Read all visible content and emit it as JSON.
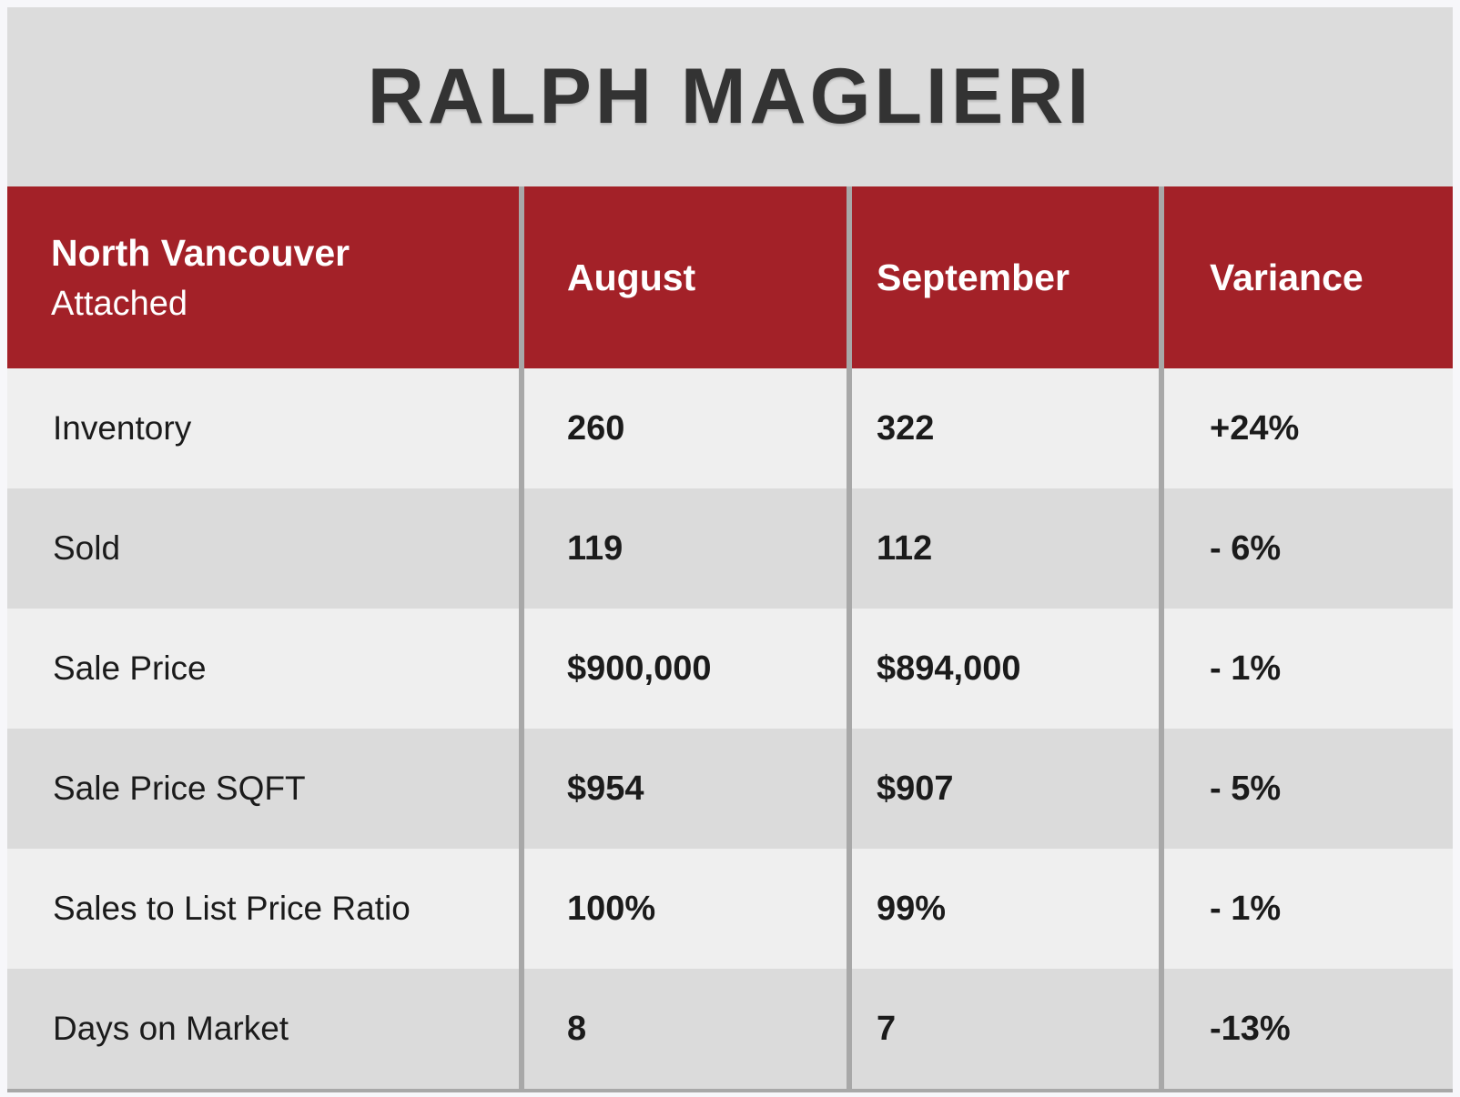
{
  "chart_data": {
    "type": "table",
    "title": "RALPH MAGLIERI",
    "header": {
      "region_line1": "North Vancouver",
      "region_line2": "Attached",
      "columns": [
        "August",
        "September",
        "Variance"
      ]
    },
    "rows": [
      {
        "label": "Inventory",
        "august": "260",
        "september": "322",
        "variance": "+24%"
      },
      {
        "label": "Sold",
        "august": "119",
        "september": "112",
        "variance": "- 6%"
      },
      {
        "label": "Sale Price",
        "august": "$900,000",
        "september": "$894,000",
        "variance": "- 1%"
      },
      {
        "label": "Sale Price SQFT",
        "august": "$954",
        "september": "$907",
        "variance": "- 5%"
      },
      {
        "label": "Sales to List Price Ratio",
        "august": "100%",
        "september": "99%",
        "variance": "- 1%"
      },
      {
        "label": "Days on Market",
        "august": "8",
        "september": "7",
        "variance": "-13%"
      }
    ]
  },
  "colors": {
    "header_bg": "#A32128",
    "header_text": "#FFFFFF",
    "row_light": "#EFEFEF",
    "row_dark": "#DBDBDB",
    "title_bg": "#DCDCDC",
    "page_border": "#F7F7FA",
    "divider": "#A8A8A8",
    "title_text": "#333333",
    "data_text": "#1B1B1B"
  }
}
